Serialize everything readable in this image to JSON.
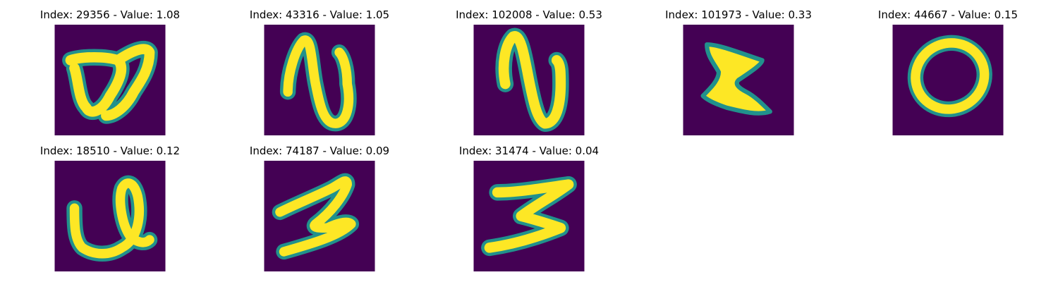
{
  "colors": {
    "background": "#440154",
    "stroke_mid": "#21918c",
    "stroke_high": "#fde725"
  },
  "panels": [
    {
      "title": "Index: 29356 - Value: 1.08",
      "glyph": "open-loop-stroke"
    },
    {
      "title": "Index: 43316 - Value: 1.05",
      "glyph": "wavy-n-stroke"
    },
    {
      "title": "Index: 102008 - Value: 0.53",
      "glyph": "wavy-n-stroke"
    },
    {
      "title": "Index: 101973 - Value: 0.33",
      "glyph": "z-shaped-blob"
    },
    {
      "title": "Index: 44667 - Value: 0.15",
      "glyph": "oval-zero"
    },
    {
      "title": "Index: 18510 - Value: 0.12",
      "glyph": "cursive-loop-stroke"
    },
    {
      "title": "Index: 74187 - Value: 0.09",
      "glyph": "slanted-two-stroke"
    },
    {
      "title": "Index: 31474 - Value: 0.04",
      "glyph": "zigzag-z-stroke"
    }
  ]
}
